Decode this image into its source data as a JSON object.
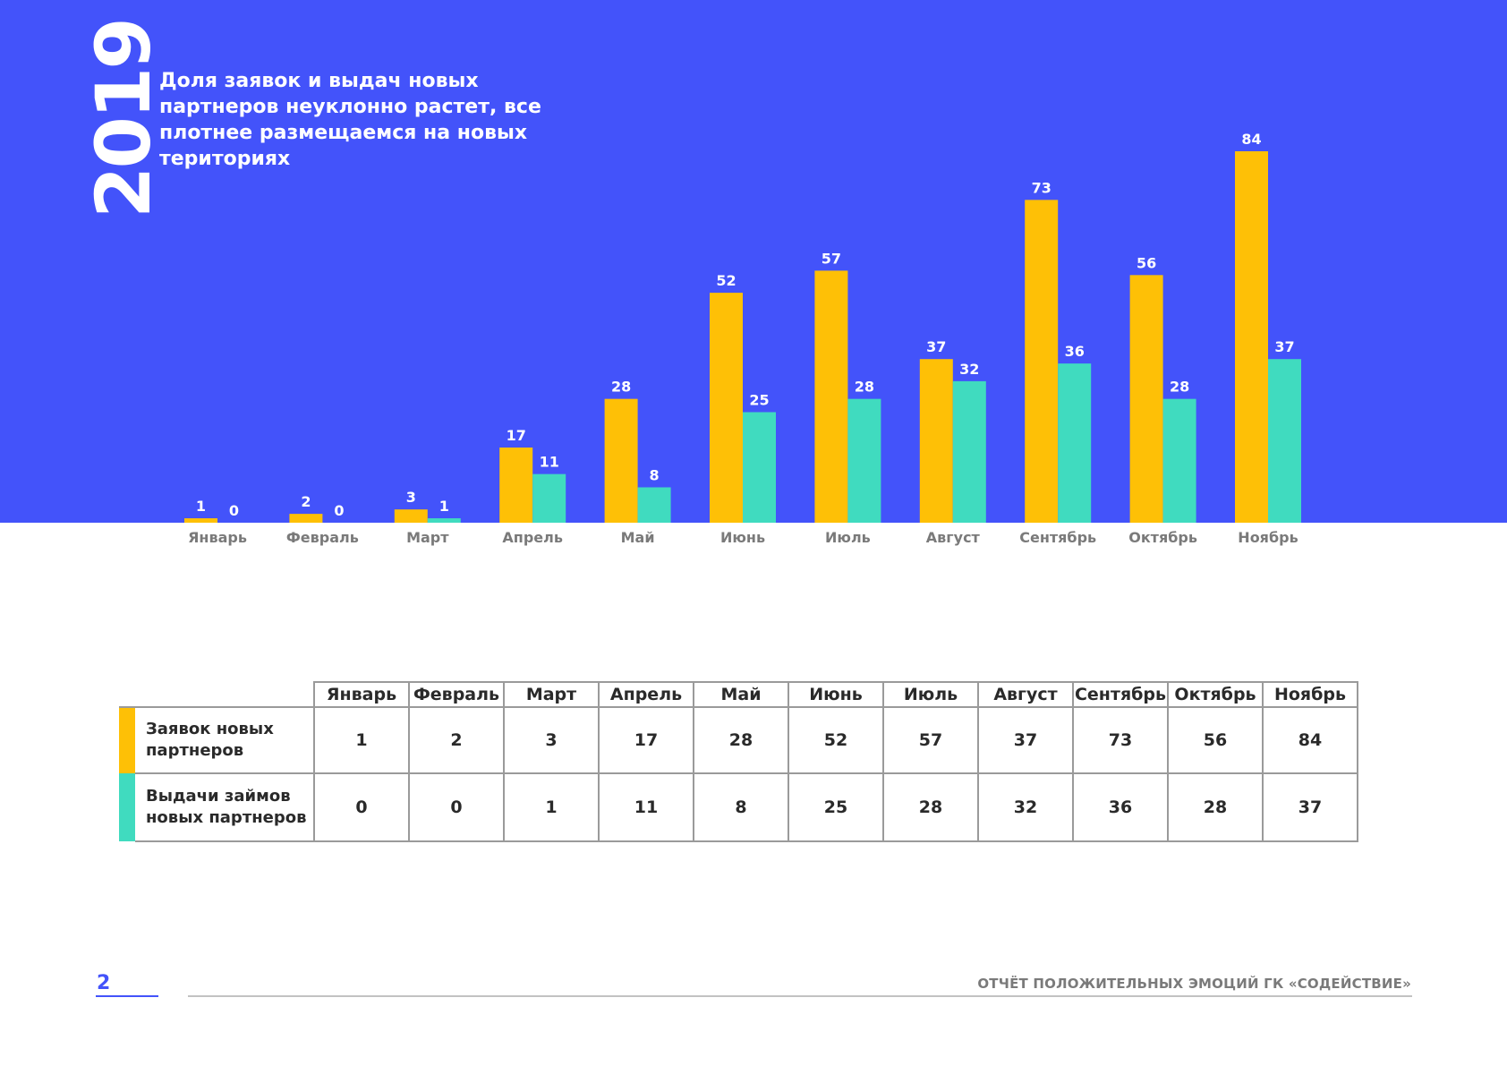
{
  "year": "2019",
  "headline": "Доля заявок и выдач новых партнеров неуклонно растет, все плотнее размещаемся на новых териториях",
  "colors": {
    "background": "#4353fa",
    "applications": "#fec006",
    "loans": "#40dbbf",
    "month_label": "#7a7a7a"
  },
  "chart_data": {
    "type": "bar",
    "title": "",
    "xlabel": "",
    "ylabel": "",
    "categories": [
      "Январь",
      "Февраль",
      "Март",
      "Апрель",
      "Май",
      "Июнь",
      "Июль",
      "Август",
      "Сентябрь",
      "Октябрь",
      "Ноябрь"
    ],
    "series": [
      {
        "name": "Заявок новых партнеров",
        "color": "#fec006",
        "values": [
          1,
          2,
          3,
          17,
          28,
          52,
          57,
          37,
          73,
          56,
          84
        ]
      },
      {
        "name": "Выдачи займов новых партнеров",
        "color": "#40dbbf",
        "values": [
          0,
          0,
          1,
          11,
          8,
          25,
          28,
          32,
          36,
          28,
          37
        ]
      }
    ],
    "ylim": [
      0,
      84
    ],
    "grid": false,
    "data_labels": true
  },
  "table": {
    "headers": [
      "Январь",
      "Февраль",
      "Март",
      "Апрель",
      "Май",
      "Июнь",
      "Июль",
      "Август",
      "Сентябрь",
      "Октябрь",
      "Ноябрь"
    ],
    "rows": [
      {
        "label_line1": "Заявок новых",
        "label_line2": "партнеров",
        "color": "#fec006",
        "values": [
          "1",
          "2",
          "3",
          "17",
          "28",
          "52",
          "57",
          "37",
          "73",
          "56",
          "84"
        ]
      },
      {
        "label_line1": "Выдачи займов",
        "label_line2": "новых партнеров",
        "color": "#40dbbf",
        "values": [
          "0",
          "0",
          "1",
          "11",
          "8",
          "25",
          "28",
          "32",
          "36",
          "28",
          "37"
        ]
      }
    ]
  },
  "footer": {
    "page_number": "2",
    "title": "ОТЧЁТ ПОЛОЖИТЕЛЬНЫХ ЭМОЦИЙ ГК «СОДЕЙСТВИЕ»"
  }
}
